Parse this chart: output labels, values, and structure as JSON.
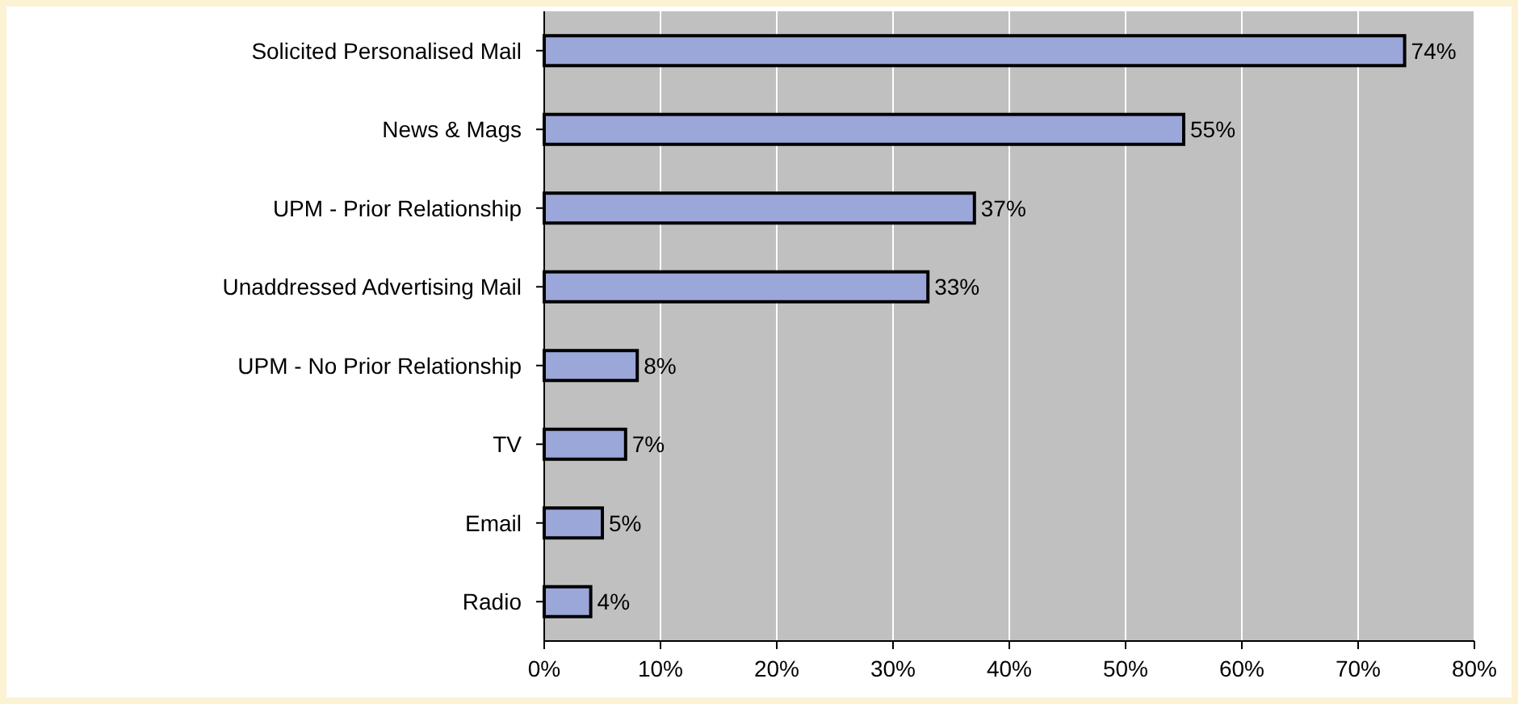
{
  "chart_data": {
    "type": "bar",
    "orientation": "horizontal",
    "categories": [
      "Solicited Personalised Mail",
      "News & Mags",
      "UPM - Prior Relationship",
      "Unaddressed Advertising Mail",
      "UPM - No Prior Relationship",
      "TV",
      "Email",
      "Radio"
    ],
    "values": [
      74,
      55,
      37,
      33,
      8,
      7,
      5,
      4
    ],
    "value_labels": [
      "74%",
      "55%",
      "37%",
      "33%",
      "8%",
      "7%",
      "5%",
      "4%"
    ],
    "color": "#9ba6d9",
    "xlim": [
      0,
      80
    ],
    "xticks": [
      {
        "value": 0,
        "label": "0%"
      },
      {
        "value": 10,
        "label": "10%"
      },
      {
        "value": 20,
        "label": "20%"
      },
      {
        "value": 30,
        "label": "30%"
      },
      {
        "value": 40,
        "label": "40%"
      },
      {
        "value": 50,
        "label": "50%"
      },
      {
        "value": 60,
        "label": "60%"
      },
      {
        "value": 70,
        "label": "70%"
      },
      {
        "value": 80,
        "label": "80%"
      }
    ],
    "grid": "x"
  }
}
